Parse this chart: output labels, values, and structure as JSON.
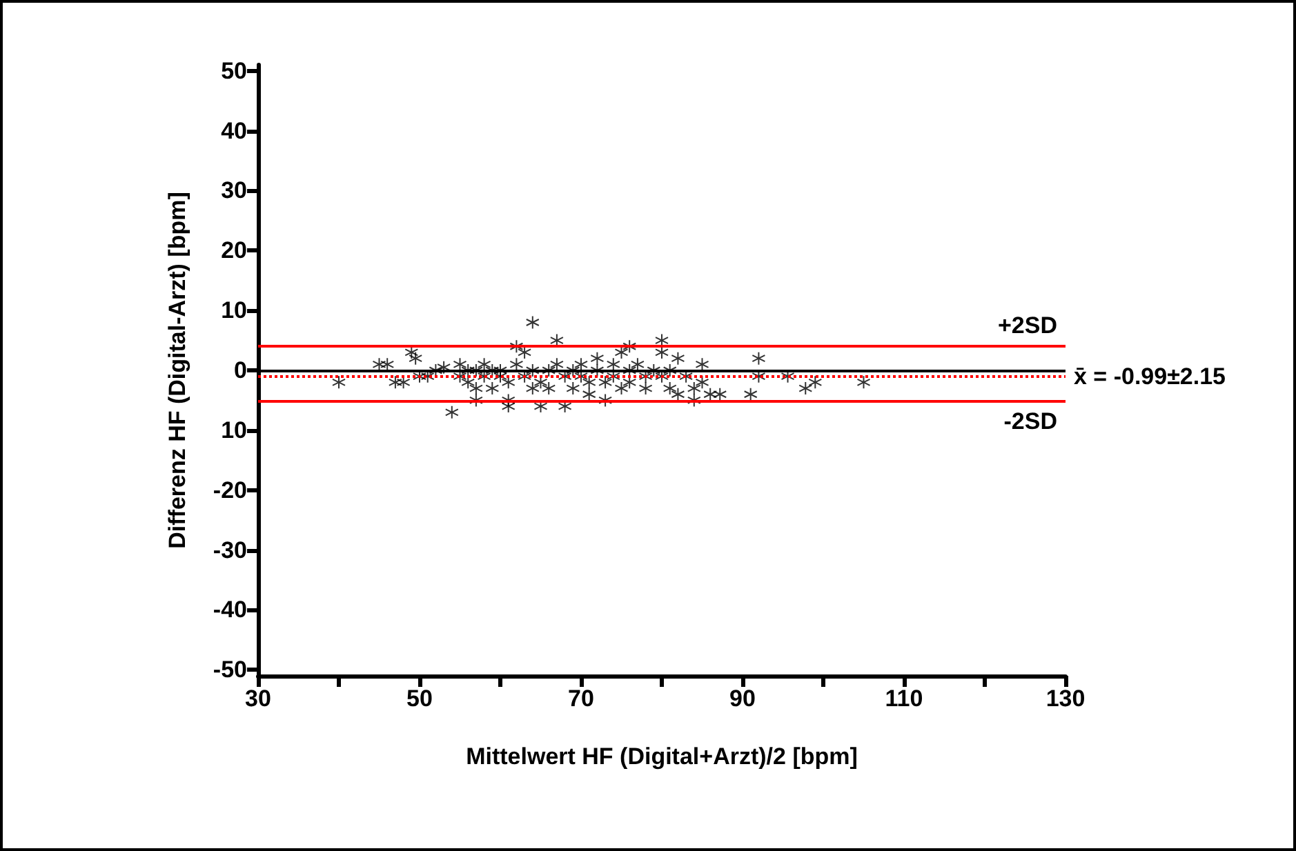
{
  "chart_data": {
    "type": "scatter",
    "xlabel": "Mittelwert HF (Digital+Arzt)/2 [bpm]",
    "ylabel": "Differenz HF (Digital-Arzt) [bpm]",
    "xlim": [
      30,
      130
    ],
    "xticks": [
      30,
      {
        "value": 40,
        "label": null
      },
      50,
      {
        "value": 60,
        "label": null
      },
      70,
      {
        "value": 80,
        "label": null
      },
      90,
      {
        "value": 100,
        "label": null
      },
      110,
      {
        "value": 120,
        "label": null
      },
      130
    ],
    "ylim": [
      -51,
      51
    ],
    "yticks": [
      -50,
      -40,
      -30,
      -20,
      {
        "value": -10,
        "label": "10"
      },
      0,
      10,
      20,
      30,
      40,
      50
    ],
    "grid": false,
    "marker": "cross",
    "series": [
      {
        "color": "#000000",
        "x": [
          40,
          45,
          46,
          47,
          48,
          49,
          49.5,
          50,
          51,
          52,
          53,
          54,
          55,
          55,
          56,
          56,
          57,
          57,
          57,
          58,
          58,
          59,
          59,
          60,
          60,
          61,
          61,
          61,
          62,
          62,
          63,
          63,
          64,
          64,
          64,
          65,
          65,
          66,
          66,
          67,
          67,
          68,
          68,
          69,
          69,
          70,
          70,
          71,
          71,
          72,
          72,
          73,
          73,
          74,
          74,
          75,
          75,
          76,
          76,
          76,
          77,
          78,
          78,
          79,
          80,
          80,
          80,
          81,
          81,
          82,
          82,
          83,
          84,
          84,
          85,
          85,
          86,
          87.2,
          91,
          92,
          92,
          95.6,
          97.8,
          99,
          105
        ],
        "values": [
          -2,
          1,
          1,
          -2,
          -2,
          3,
          2,
          -1,
          -1,
          0,
          0.5,
          -7,
          1,
          -1,
          0,
          -2,
          -3,
          -5,
          0,
          -1,
          1,
          0,
          -3,
          -1,
          0,
          -5,
          -6,
          -2,
          1,
          4,
          3,
          -1,
          8,
          0,
          -3,
          -2,
          -6,
          0,
          -3,
          5,
          1,
          -1,
          -6,
          -3,
          0,
          -1,
          1,
          -2,
          -4,
          2,
          0,
          -2,
          -5,
          1,
          -1,
          3,
          -3,
          4,
          0,
          -2,
          1,
          -1,
          -3,
          0,
          5,
          3,
          -1,
          -3,
          0,
          2,
          -4,
          -1,
          -3,
          -5,
          1,
          -2,
          -4,
          -4,
          -4,
          2,
          -1,
          -1,
          -3,
          -2,
          -2
        ]
      }
    ],
    "ref_lines": [
      {
        "axis": "y",
        "value": 0,
        "color": "#000000",
        "line_style": "solid"
      },
      {
        "axis": "y",
        "value": 4.1,
        "label": "+2SD",
        "color": "#ff0000",
        "line_style": "solid"
      },
      {
        "axis": "y",
        "value": -0.99,
        "label": "x̄ = -0.99±2.15",
        "color": "#ff0000",
        "line_style": "dotted"
      },
      {
        "axis": "y",
        "value": -5.2,
        "label": "-2SD",
        "color": "#ff0000",
        "line_style": "solid"
      }
    ]
  }
}
